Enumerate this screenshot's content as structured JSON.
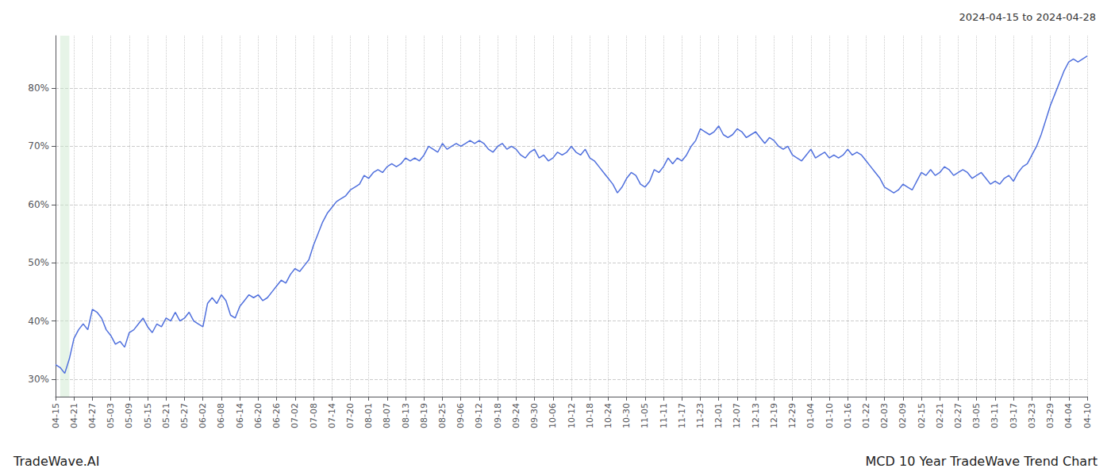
{
  "chart_data": {
    "type": "line",
    "title": "2024-04-15 to 2024-04-28",
    "annotations": [
      "TradeWave.AI",
      "MCD 10 Year TradeWave Trend Chart"
    ],
    "grid": true,
    "ylim": [
      27,
      89
    ],
    "yticks": [
      {
        "value": 30,
        "label": "30%"
      },
      {
        "value": 40,
        "label": "40%"
      },
      {
        "value": 50,
        "label": "50%"
      },
      {
        "value": 60,
        "label": "60%"
      },
      {
        "value": 70,
        "label": "70%"
      },
      {
        "value": 80,
        "label": "80%"
      }
    ],
    "highlight": {
      "start": 1,
      "end": 3,
      "color": "#c8e6c9"
    },
    "categories": [
      "04-15",
      null,
      null,
      null,
      "04-21",
      null,
      null,
      null,
      "04-27",
      null,
      null,
      null,
      "05-03",
      null,
      null,
      null,
      "05-09",
      null,
      null,
      null,
      "05-15",
      null,
      null,
      null,
      "05-21",
      null,
      null,
      null,
      "05-27",
      null,
      null,
      null,
      "06-02",
      null,
      null,
      null,
      "06-08",
      null,
      null,
      null,
      "06-14",
      null,
      null,
      null,
      "06-20",
      null,
      null,
      null,
      "06-26",
      null,
      null,
      null,
      "07-02",
      null,
      null,
      null,
      "07-08",
      null,
      null,
      null,
      "07-14",
      null,
      null,
      null,
      "07-20",
      null,
      null,
      null,
      "08-01",
      null,
      null,
      null,
      "08-07",
      null,
      null,
      null,
      "08-13",
      null,
      null,
      null,
      "08-19",
      null,
      null,
      null,
      "08-25",
      null,
      null,
      null,
      "09-06",
      null,
      null,
      null,
      "09-12",
      null,
      null,
      null,
      "09-18",
      null,
      null,
      null,
      "09-24",
      null,
      null,
      null,
      "09-30",
      null,
      null,
      null,
      "10-06",
      null,
      null,
      null,
      "10-12",
      null,
      null,
      null,
      "10-18",
      null,
      null,
      null,
      "10-24",
      null,
      null,
      null,
      "10-30",
      null,
      null,
      null,
      "11-05",
      null,
      null,
      null,
      "11-11",
      null,
      null,
      null,
      "11-17",
      null,
      null,
      null,
      "11-23",
      null,
      null,
      null,
      "12-01",
      null,
      null,
      null,
      "12-07",
      null,
      null,
      null,
      "12-13",
      null,
      null,
      null,
      "12-19",
      null,
      null,
      null,
      "12-29",
      null,
      null,
      null,
      "01-04",
      null,
      null,
      null,
      "01-10",
      null,
      null,
      null,
      "01-16",
      null,
      null,
      null,
      "01-22",
      null,
      null,
      null,
      "02-03",
      null,
      null,
      null,
      "02-09",
      null,
      null,
      null,
      "02-15",
      null,
      null,
      null,
      "02-21",
      null,
      null,
      null,
      "02-27",
      null,
      null,
      null,
      "03-05",
      null,
      null,
      null,
      "03-11",
      null,
      null,
      null,
      "03-17",
      null,
      null,
      null,
      "03-23",
      null,
      null,
      null,
      "03-29",
      null,
      null,
      null,
      "04-04",
      null,
      null,
      null,
      "04-10"
    ],
    "values": [
      32.5,
      32.0,
      31.0,
      33.5,
      37.0,
      38.5,
      39.5,
      38.5,
      42.0,
      41.5,
      40.5,
      38.5,
      37.5,
      36.0,
      36.5,
      35.5,
      38.0,
      38.5,
      39.5,
      40.5,
      39.0,
      38.0,
      39.5,
      39.0,
      40.5,
      40.0,
      41.5,
      40.0,
      40.5,
      41.5,
      40.0,
      39.5,
      39.0,
      43.0,
      44.0,
      43.0,
      44.5,
      43.5,
      41.0,
      40.5,
      42.5,
      43.5,
      44.5,
      44.0,
      44.5,
      43.5,
      44.0,
      45.0,
      46.0,
      47.0,
      46.5,
      48.0,
      49.0,
      48.5,
      49.5,
      50.5,
      53.0,
      55.0,
      57.0,
      58.5,
      59.5,
      60.5,
      61.0,
      61.5,
      62.5,
      63.0,
      63.5,
      65.0,
      64.5,
      65.5,
      66.0,
      65.5,
      66.5,
      67.0,
      66.5,
      67.0,
      68.0,
      67.5,
      68.0,
      67.5,
      68.5,
      70.0,
      69.5,
      69.0,
      70.5,
      69.5,
      70.0,
      70.5,
      70.0,
      70.5,
      71.0,
      70.5,
      71.0,
      70.5,
      69.5,
      69.0,
      70.0,
      70.5,
      69.5,
      70.0,
      69.5,
      68.5,
      68.0,
      69.0,
      69.5,
      68.0,
      68.5,
      67.5,
      68.0,
      69.0,
      68.5,
      69.0,
      70.0,
      69.0,
      68.5,
      69.5,
      68.0,
      67.5,
      66.5,
      65.5,
      64.5,
      63.5,
      62.0,
      63.0,
      64.5,
      65.5,
      65.0,
      63.5,
      63.0,
      64.0,
      66.0,
      65.5,
      66.5,
      68.0,
      67.0,
      68.0,
      67.5,
      68.5,
      70.0,
      71.0,
      73.0,
      72.5,
      72.0,
      72.5,
      73.5,
      72.0,
      71.5,
      72.0,
      73.0,
      72.5,
      71.5,
      72.0,
      72.5,
      71.5,
      70.5,
      71.5,
      71.0,
      70.0,
      69.5,
      70.0,
      68.5,
      68.0,
      67.5,
      68.5,
      69.5,
      68.0,
      68.5,
      69.0,
      68.0,
      68.5,
      68.0,
      68.5,
      69.5,
      68.5,
      69.0,
      68.5,
      67.5,
      66.5,
      65.5,
      64.5,
      63.0,
      62.5,
      62.0,
      62.5,
      63.5,
      63.0,
      62.5,
      64.0,
      65.5,
      65.0,
      66.0,
      65.0,
      65.5,
      66.5,
      66.0,
      65.0,
      65.5,
      66.0,
      65.5,
      64.5,
      65.0,
      65.5,
      64.5,
      63.5,
      64.0,
      63.5,
      64.5,
      65.0,
      64.0,
      65.5,
      66.5,
      67.0,
      68.5,
      70.0,
      72.0,
      74.5,
      77.0,
      79.0,
      81.0,
      83.0,
      84.5,
      85.0,
      84.5,
      85.0,
      85.5
    ]
  }
}
